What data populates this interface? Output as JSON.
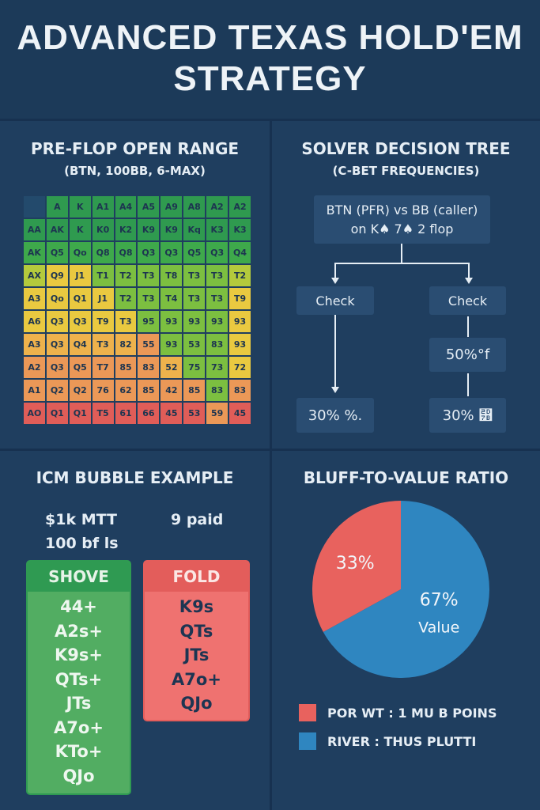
{
  "title": "ADVANCED TEXAS HOLD'EM STRATEGY",
  "colors": {
    "dg": "#2f9a4f",
    "g": "#3ea94b",
    "lg": "#7cbf40",
    "yg": "#b4ca3c",
    "y": "#e9c940",
    "oy": "#eeb24c",
    "o": "#eb9857",
    "r": "#e05d58",
    "empty": "#234a6c"
  },
  "preflop": {
    "title": "PRE-FLOP OPEN RANGE",
    "subtitle": "(BTN, 100BB, 6-MAX)",
    "rows": [
      {
        "cells": [
          "",
          "A",
          "K",
          "A1",
          "A4",
          "A5",
          "A9",
          "A8",
          "A2",
          "A2"
        ],
        "colors": [
          "empty",
          "dg",
          "dg",
          "dg",
          "dg",
          "dg",
          "dg",
          "dg",
          "dg",
          "dg"
        ]
      },
      {
        "cells": [
          "AA",
          "AK",
          "K",
          "K0",
          "K2",
          "K9",
          "K9",
          "Kq",
          "K3",
          "K3"
        ],
        "colors": [
          "dg",
          "dg",
          "dg",
          "dg",
          "dg",
          "dg",
          "dg",
          "dg",
          "dg",
          "dg"
        ]
      },
      {
        "cells": [
          "AK",
          "Q5",
          "Qo",
          "Q8",
          "Q8",
          "Q3",
          "Q3",
          "Q5",
          "Q3",
          "Q4"
        ],
        "colors": [
          "g",
          "g",
          "g",
          "g",
          "g",
          "g",
          "g",
          "g",
          "g",
          "g"
        ]
      },
      {
        "cells": [
          "AX",
          "Q9",
          "J1",
          "T1",
          "T2",
          "T3",
          "T8",
          "T3",
          "T3",
          "T2"
        ],
        "colors": [
          "yg",
          "y",
          "y",
          "lg",
          "lg",
          "lg",
          "lg",
          "lg",
          "lg",
          "yg"
        ]
      },
      {
        "cells": [
          "A3",
          "Qo",
          "Q1",
          "J1",
          "T2",
          "T3",
          "T4",
          "T3",
          "T3",
          "T9"
        ],
        "colors": [
          "y",
          "y",
          "y",
          "y",
          "lg",
          "lg",
          "lg",
          "lg",
          "lg",
          "y"
        ]
      },
      {
        "cells": [
          "A6",
          "Q3",
          "Q3",
          "T9",
          "T3",
          "95",
          "93",
          "93",
          "93",
          "93"
        ],
        "colors": [
          "y",
          "y",
          "y",
          "y",
          "y",
          "lg",
          "lg",
          "lg",
          "lg",
          "y"
        ]
      },
      {
        "cells": [
          "A3",
          "Q3",
          "Q4",
          "T3",
          "82",
          "55",
          "93",
          "53",
          "83",
          "93"
        ],
        "colors": [
          "oy",
          "oy",
          "oy",
          "oy",
          "oy",
          "o",
          "lg",
          "lg",
          "lg",
          "y"
        ]
      },
      {
        "cells": [
          "A2",
          "Q3",
          "Q5",
          "T7",
          "85",
          "83",
          "52",
          "75",
          "73",
          "72"
        ],
        "colors": [
          "o",
          "o",
          "o",
          "o",
          "o",
          "o",
          "oy",
          "lg",
          "lg",
          "y"
        ]
      },
      {
        "cells": [
          "A1",
          "Q2",
          "Q2",
          "76",
          "62",
          "85",
          "42",
          "85",
          "83",
          "83"
        ],
        "colors": [
          "o",
          "o",
          "o",
          "o",
          "o",
          "o",
          "o",
          "o",
          "lg",
          "o"
        ]
      },
      {
        "cells": [
          "AO",
          "Q1",
          "Q1",
          "T5",
          "61",
          "66",
          "45",
          "53",
          "59",
          "45"
        ],
        "colors": [
          "r",
          "r",
          "r",
          "r",
          "r",
          "r",
          "r",
          "r",
          "o",
          "r"
        ]
      }
    ]
  },
  "tree": {
    "title": "SOLVER DECISION TREE",
    "subtitle": "(C-BET FREQUENCIES)",
    "root_line1": "BTN (PFR) vs BB (caller)",
    "root_line2": "on K♠ 7♠ 2 flop",
    "left_action": "Check",
    "right_action": "Check",
    "right_mid": "50%°f",
    "left_leaf": "30% %.",
    "right_leaf": "30% ⵻"
  },
  "icm": {
    "title": "ICM BUBBLE EXAMPLE",
    "event": "$1k MTT",
    "stack": "100 bf ls",
    "paid": "9 paid",
    "shove": {
      "label": "SHOVE",
      "hands": [
        "44+",
        "A2s+",
        "K9s+",
        "QTs+",
        "JTs",
        "A7o+",
        "KTo+",
        "QJo"
      ]
    },
    "fold": {
      "label": "FOLD",
      "hands": [
        "K9s",
        "QTs",
        "JTs",
        "A7o+",
        "QJo"
      ]
    }
  },
  "chart_data": {
    "type": "pie",
    "title": "BLUFF-TO-VALUE RATIO",
    "slices": [
      {
        "label": "33%",
        "value": 33,
        "color": "#e8625e",
        "sublabel": ""
      },
      {
        "label": "67%",
        "value": 67,
        "color": "#2f86c0",
        "sublabel": "Value"
      }
    ],
    "legend": [
      {
        "text": "POR WT : 1 MU B POINS",
        "color": "#e8625e"
      },
      {
        "text": "RIVER : THUS PLUTTI",
        "color": "#2f86c0"
      }
    ]
  }
}
